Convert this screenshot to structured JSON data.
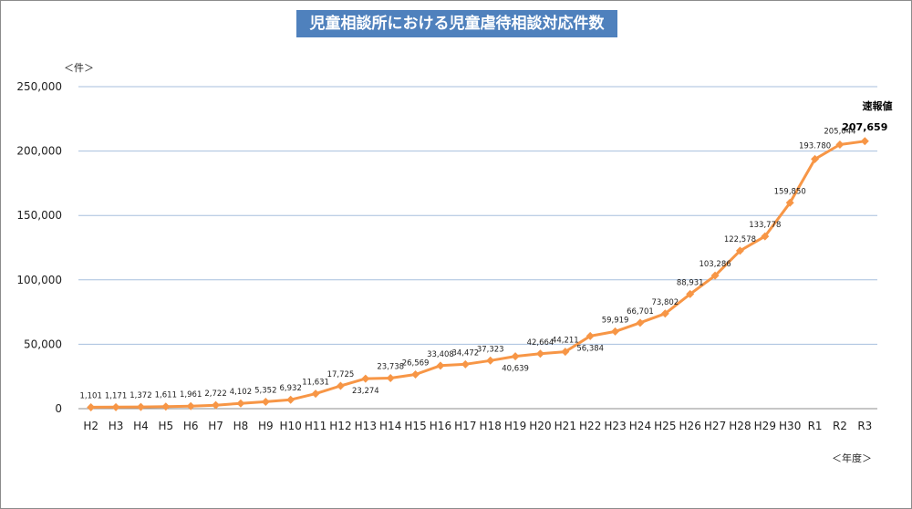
{
  "chart_data": {
    "type": "line",
    "title": "児童相談所における児童虐待相談対応件数",
    "y_unit_label": "＜件＞",
    "x_unit_label": "＜年度＞",
    "ylim": [
      0,
      250000
    ],
    "y_ticks": [
      0,
      50000,
      100000,
      150000,
      200000,
      250000
    ],
    "y_tick_labels": [
      "0",
      "50,000",
      "100,000",
      "150,000",
      "200,000",
      "250,000"
    ],
    "grid": "horizontal",
    "legend": "none",
    "series_color": "#f79646",
    "grid_color": "#a7bfde",
    "categories": [
      "H2",
      "H3",
      "H4",
      "H5",
      "H6",
      "H7",
      "H8",
      "H9",
      "H10",
      "H11",
      "H12",
      "H13",
      "H14",
      "H15",
      "H16",
      "H17",
      "H18",
      "H19",
      "H20",
      "H21",
      "H22",
      "H23",
      "H24",
      "H25",
      "H26",
      "H27",
      "H28",
      "H29",
      "H30",
      "R1",
      "R2",
      "R3"
    ],
    "values": [
      1101,
      1171,
      1372,
      1611,
      1961,
      2722,
      4102,
      5352,
      6932,
      11631,
      17725,
      23274,
      23738,
      26569,
      33408,
      34472,
      37323,
      40639,
      42664,
      44211,
      56384,
      59919,
      66701,
      73802,
      88931,
      103286,
      122578,
      133778,
      159850,
      193780,
      205044,
      207659
    ],
    "data_labels": [
      "1,101",
      "1,171",
      "1,372",
      "1,611",
      "1,961",
      "2,722",
      "4,102",
      "5,352",
      "6,932",
      "11,631",
      "17,725",
      "23,274",
      "23,738",
      "26,569",
      "33,408",
      "34,472",
      "37,323",
      "40,639",
      "42,664",
      "44,211",
      "56,384",
      "59,919",
      "66,701",
      "73,802",
      "88,931",
      "103,286",
      "122,578",
      "133,778",
      "159,850",
      "193.780",
      "205,044",
      "207,659"
    ],
    "annotation": "速報値"
  }
}
